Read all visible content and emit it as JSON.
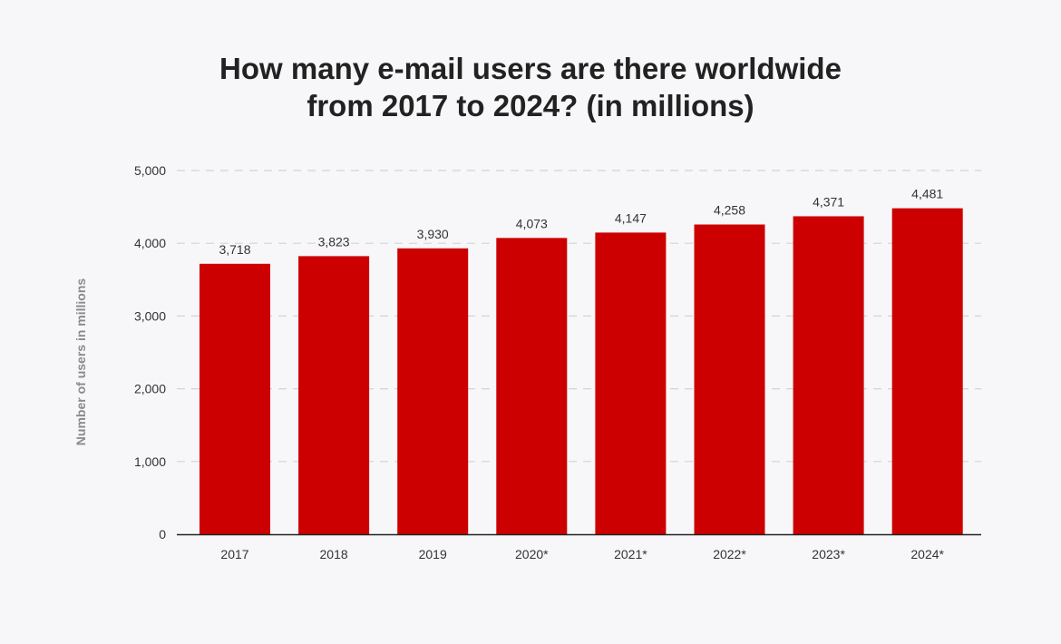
{
  "chart_data": {
    "type": "bar",
    "title_lines": [
      "How many e-mail users are there worldwide",
      "from 2017 to 2024? (in millions)"
    ],
    "categories": [
      "2017",
      "2018",
      "2019",
      "2020*",
      "2021*",
      "2022*",
      "2023*",
      "2024*"
    ],
    "values": [
      3718,
      3823,
      3930,
      4073,
      4147,
      4258,
      4371,
      4481
    ],
    "value_labels": [
      "3,718",
      "3,823",
      "3,930",
      "4,073",
      "4,147",
      "4,258",
      "4,371",
      "4,481"
    ],
    "xlabel": "",
    "ylabel": "Number of users in millions",
    "ylim": [
      0,
      5000
    ],
    "yticks": [
      0,
      1000,
      2000,
      3000,
      4000,
      5000
    ],
    "ytick_labels": [
      "0",
      "1,000",
      "2,000",
      "3,000",
      "4,000",
      "5,000"
    ],
    "grid": true,
    "bar_color": "#cc0000"
  }
}
